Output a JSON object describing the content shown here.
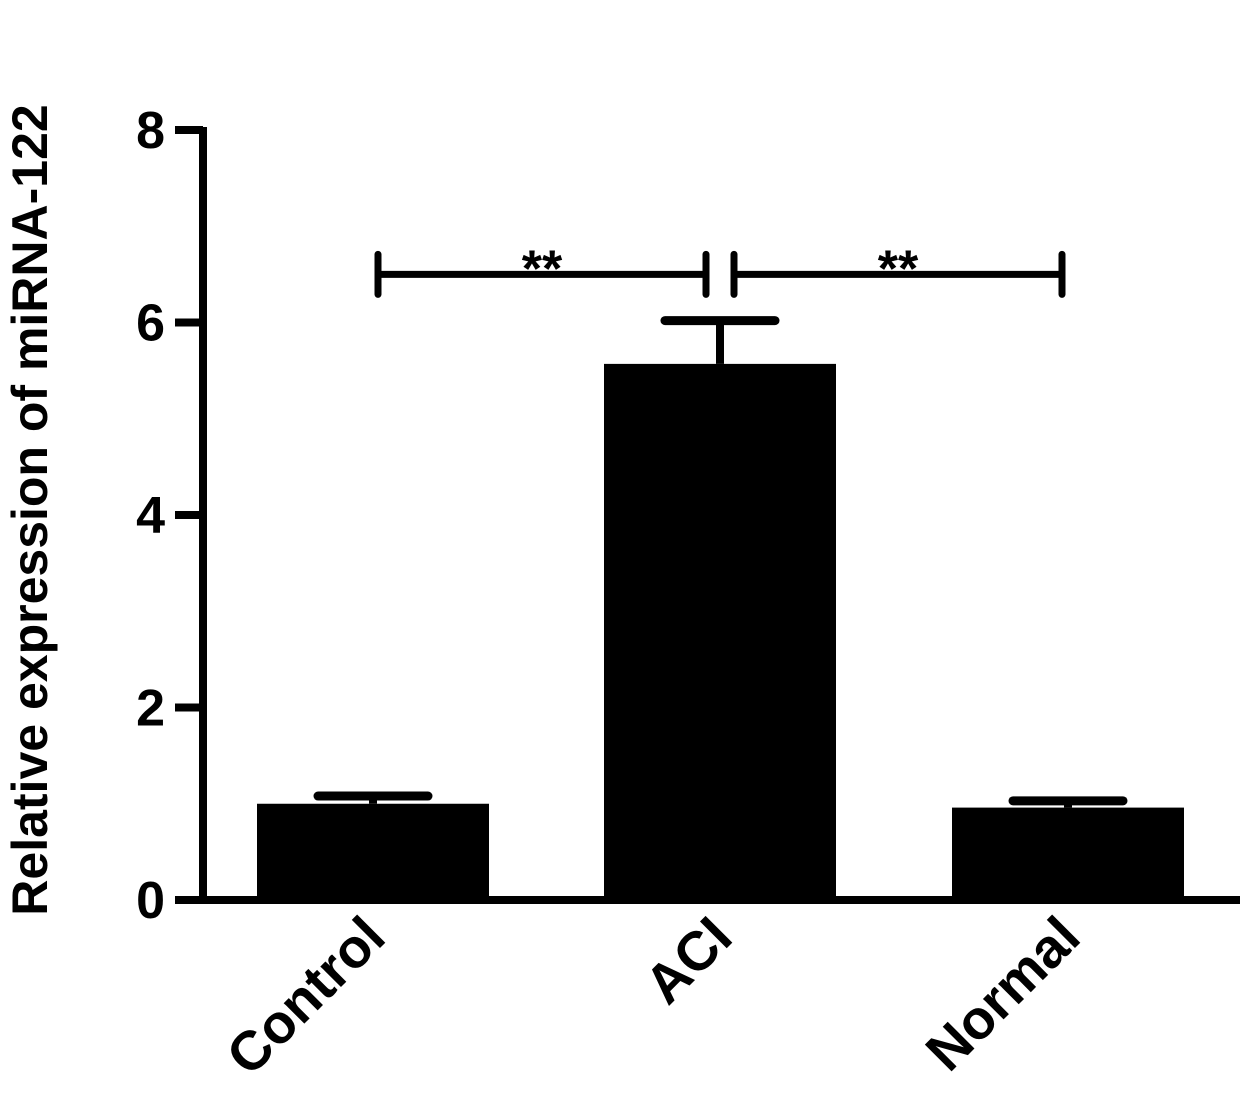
{
  "chart_data": {
    "type": "bar",
    "title": "",
    "xlabel": "",
    "ylabel": "Relative expression of miRNA-122",
    "categories": [
      "Control",
      "ACI",
      "Normal"
    ],
    "values": [
      1.0,
      5.57,
      0.96
    ],
    "errors": [
      0.08,
      0.45,
      0.07
    ],
    "ylim": [
      0,
      8
    ],
    "yticks": [
      0,
      2,
      4,
      6,
      8
    ],
    "ytick_labels": [
      "0",
      "2",
      "4",
      "6",
      "8"
    ],
    "grid": false,
    "legend": "none",
    "bar_color": "#000000",
    "annotations": [
      {
        "from": "Control",
        "to": "ACI",
        "y": 6.5,
        "text": "**"
      },
      {
        "from": "ACI",
        "to": "Normal",
        "y": 6.5,
        "text": "**"
      }
    ]
  }
}
